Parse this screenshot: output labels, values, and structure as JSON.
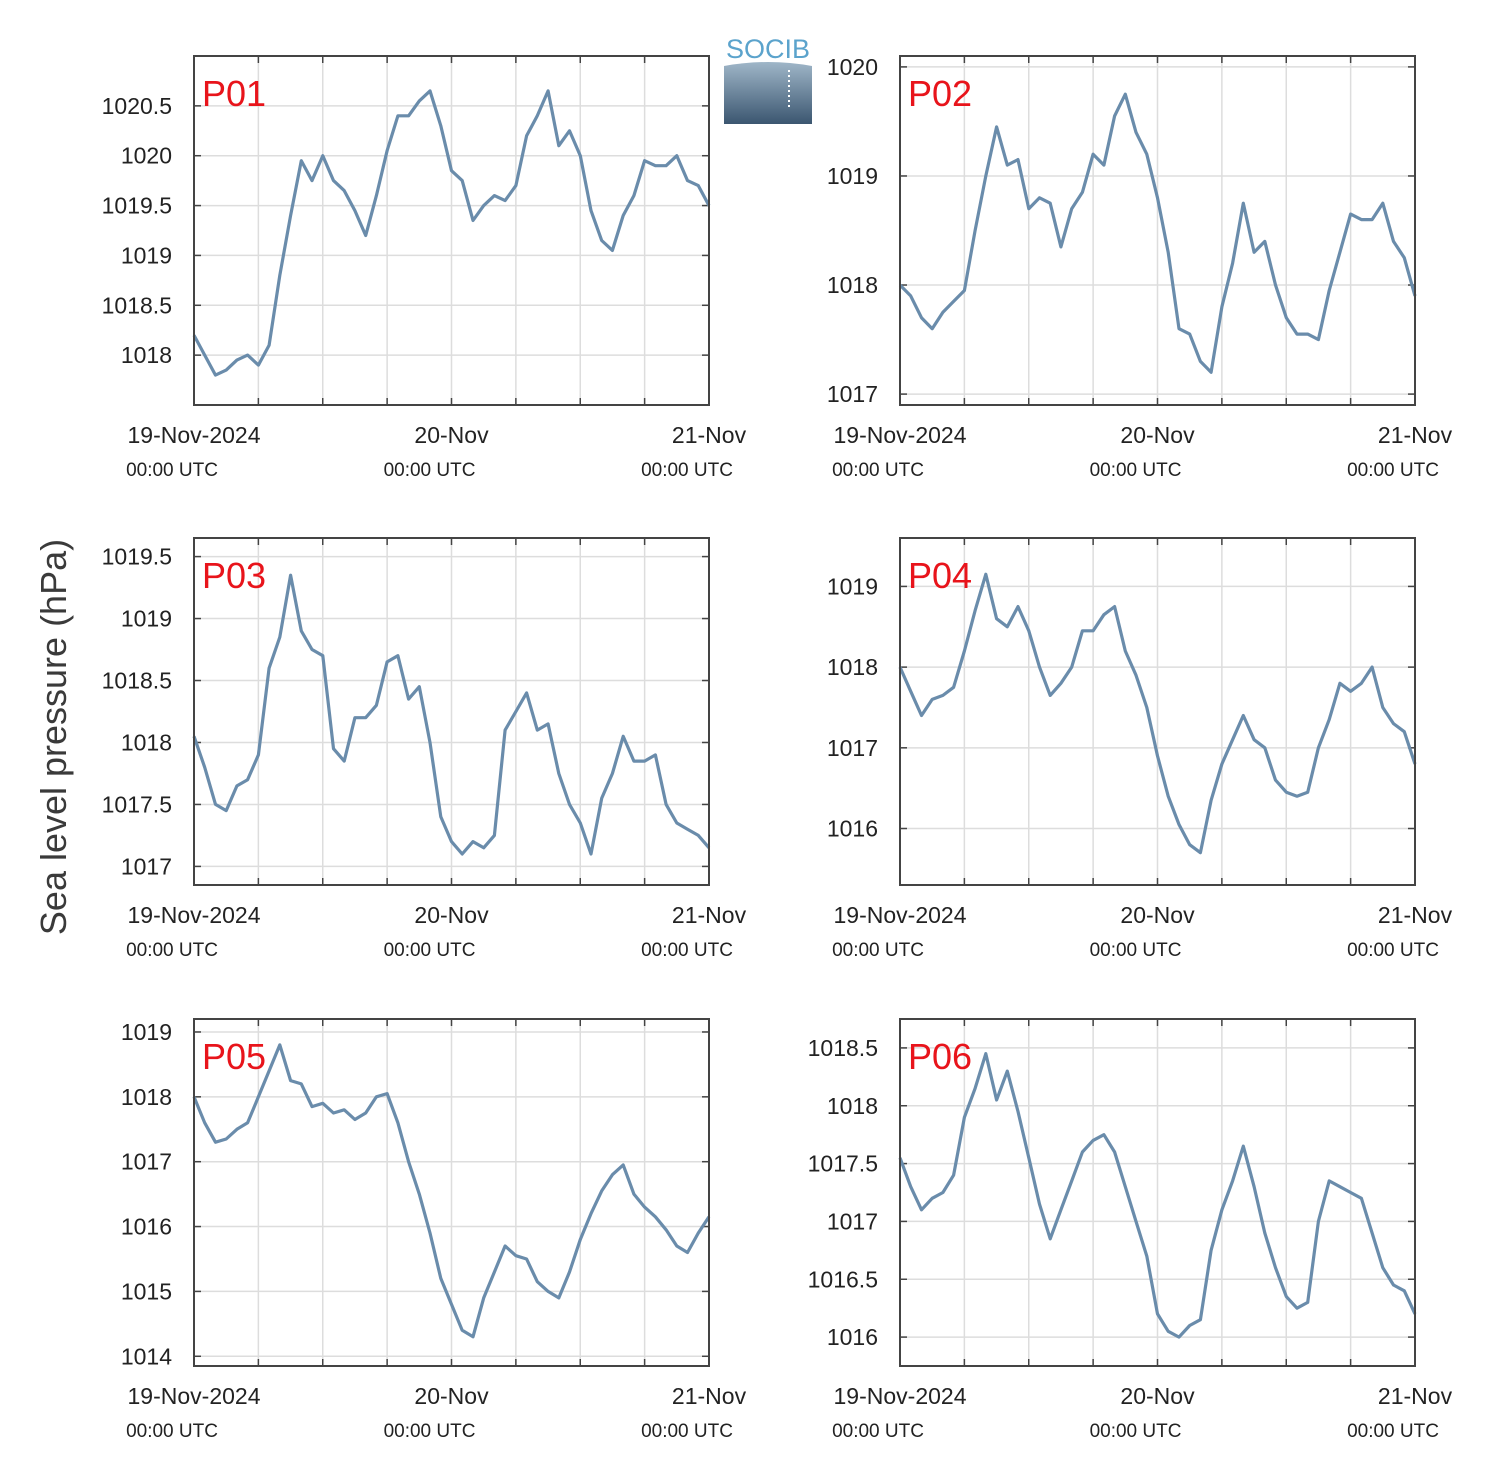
{
  "logo": {
    "text": "SOCIB",
    "text_color": "#5ba3cc",
    "gradient_top": "#9fb6c8",
    "gradient_bottom": "#3b5670"
  },
  "ylabel": "Sea level pressure (hPa)",
  "colors": {
    "line": "#6a8cab",
    "label": "#e8141b",
    "grid": "#dddddd",
    "axis": "#444444"
  },
  "chart_data": [
    {
      "type": "line",
      "title": "P01",
      "ylabel": "Sea level pressure (hPa)",
      "x_range": [
        "2024-11-19T00:00Z",
        "2024-11-21T00:00Z"
      ],
      "ylim": [
        1017.5,
        1021
      ],
      "yticks": [
        1018,
        1018.5,
        1019,
        1019.5,
        1020,
        1020.5
      ],
      "ytick_labels": [
        "1018",
        "1018.5",
        "1019",
        "1019.5",
        "1020",
        "1020.5"
      ],
      "xtick_labels": [
        "19-Nov-2024",
        "20-Nov",
        "21-Nov"
      ],
      "xtick_sublabels": [
        "00:00 UTC",
        "00:00 UTC",
        "00:00 UTC"
      ],
      "grid": true,
      "series": [
        {
          "x_hours": [
            0,
            1,
            2,
            3,
            4,
            5,
            6,
            7,
            8,
            9,
            10,
            11,
            12,
            13,
            14,
            15,
            16,
            17,
            18,
            19,
            20,
            21,
            22,
            23,
            24,
            25,
            26,
            27,
            28,
            29,
            30,
            31,
            32,
            33,
            34,
            35,
            36,
            37,
            38,
            39,
            40,
            41,
            42,
            43,
            44,
            45,
            46,
            47,
            48
          ],
          "values": [
            1018.2,
            1018.0,
            1017.8,
            1017.85,
            1017.95,
            1018.0,
            1017.9,
            1018.1,
            1018.8,
            1019.4,
            1019.95,
            1019.75,
            1020.0,
            1019.75,
            1019.65,
            1019.45,
            1019.2,
            1019.6,
            1020.05,
            1020.4,
            1020.4,
            1020.55,
            1020.65,
            1020.3,
            1019.85,
            1019.75,
            1019.35,
            1019.5,
            1019.6,
            1019.55,
            1019.7,
            1020.2,
            1020.4,
            1020.65,
            1020.1,
            1020.25,
            1020.0,
            1019.45,
            1019.15,
            1019.05,
            1019.4,
            1019.6,
            1019.95,
            1019.9,
            1019.9,
            1020.0,
            1019.75,
            1019.7,
            1019.5
          ]
        }
      ]
    },
    {
      "type": "line",
      "title": "P02",
      "ylabel": "Sea level pressure (hPa)",
      "x_range": [
        "2024-11-19T00:00Z",
        "2024-11-21T00:00Z"
      ],
      "ylim": [
        1016.9,
        1020.1
      ],
      "yticks": [
        1017,
        1018,
        1019,
        1020
      ],
      "ytick_labels": [
        "1017",
        "1018",
        "1019",
        "1020"
      ],
      "xtick_labels": [
        "19-Nov-2024",
        "20-Nov",
        "21-Nov"
      ],
      "xtick_sublabels": [
        "00:00 UTC",
        "00:00 UTC",
        "00:00 UTC"
      ],
      "grid": true,
      "series": [
        {
          "x_hours": [
            0,
            1,
            2,
            3,
            4,
            5,
            6,
            7,
            8,
            9,
            10,
            11,
            12,
            13,
            14,
            15,
            16,
            17,
            18,
            19,
            20,
            21,
            22,
            23,
            24,
            25,
            26,
            27,
            28,
            29,
            30,
            31,
            32,
            33,
            34,
            35,
            36,
            37,
            38,
            39,
            40,
            41,
            42,
            43,
            44,
            45,
            46,
            47,
            48
          ],
          "values": [
            1018.0,
            1017.9,
            1017.7,
            1017.6,
            1017.75,
            1017.85,
            1017.95,
            1018.5,
            1019.0,
            1019.45,
            1019.1,
            1019.15,
            1018.7,
            1018.8,
            1018.75,
            1018.35,
            1018.7,
            1018.85,
            1019.2,
            1019.1,
            1019.55,
            1019.75,
            1019.4,
            1019.2,
            1018.8,
            1018.3,
            1017.6,
            1017.55,
            1017.3,
            1017.2,
            1017.8,
            1018.2,
            1018.75,
            1018.3,
            1018.4,
            1018.0,
            1017.7,
            1017.55,
            1017.55,
            1017.5,
            1017.95,
            1018.3,
            1018.65,
            1018.6,
            1018.6,
            1018.75,
            1018.4,
            1018.25,
            1017.9
          ]
        }
      ]
    },
    {
      "type": "line",
      "title": "P03",
      "ylabel": "Sea level pressure (hPa)",
      "x_range": [
        "2024-11-19T00:00Z",
        "2024-11-21T00:00Z"
      ],
      "ylim": [
        1016.85,
        1019.65
      ],
      "yticks": [
        1017,
        1017.5,
        1018,
        1018.5,
        1019,
        1019.5
      ],
      "ytick_labels": [
        "1017",
        "1017.5",
        "1018",
        "1018.5",
        "1019",
        "1019.5"
      ],
      "xtick_labels": [
        "19-Nov-2024",
        "20-Nov",
        "21-Nov"
      ],
      "xtick_sublabels": [
        "00:00 UTC",
        "00:00 UTC",
        "00:00 UTC"
      ],
      "grid": true,
      "series": [
        {
          "x_hours": [
            0,
            1,
            2,
            3,
            4,
            5,
            6,
            7,
            8,
            9,
            10,
            11,
            12,
            13,
            14,
            15,
            16,
            17,
            18,
            19,
            20,
            21,
            22,
            23,
            24,
            25,
            26,
            27,
            28,
            29,
            30,
            31,
            32,
            33,
            34,
            35,
            36,
            37,
            38,
            39,
            40,
            41,
            42,
            43,
            44,
            45,
            46,
            47,
            48
          ],
          "values": [
            1018.05,
            1017.8,
            1017.5,
            1017.45,
            1017.65,
            1017.7,
            1017.9,
            1018.6,
            1018.85,
            1019.35,
            1018.9,
            1018.75,
            1018.7,
            1017.95,
            1017.85,
            1018.2,
            1018.2,
            1018.3,
            1018.65,
            1018.7,
            1018.35,
            1018.45,
            1018.0,
            1017.4,
            1017.2,
            1017.1,
            1017.2,
            1017.15,
            1017.25,
            1018.1,
            1018.25,
            1018.4,
            1018.1,
            1018.15,
            1017.75,
            1017.5,
            1017.35,
            1017.1,
            1017.55,
            1017.75,
            1018.05,
            1017.85,
            1017.85,
            1017.9,
            1017.5,
            1017.35,
            1017.3,
            1017.25,
            1017.15
          ]
        }
      ]
    },
    {
      "type": "line",
      "title": "P04",
      "ylabel": "Sea level pressure (hPa)",
      "x_range": [
        "2024-11-19T00:00Z",
        "2024-11-21T00:00Z"
      ],
      "ylim": [
        1015.3,
        1019.6
      ],
      "yticks": [
        1016,
        1017,
        1018,
        1019
      ],
      "ytick_labels": [
        "1016",
        "1017",
        "1018",
        "1019"
      ],
      "xtick_labels": [
        "19-Nov-2024",
        "20-Nov",
        "21-Nov"
      ],
      "xtick_sublabels": [
        "00:00 UTC",
        "00:00 UTC",
        "00:00 UTC"
      ],
      "grid": true,
      "series": [
        {
          "x_hours": [
            0,
            1,
            2,
            3,
            4,
            5,
            6,
            7,
            8,
            9,
            10,
            11,
            12,
            13,
            14,
            15,
            16,
            17,
            18,
            19,
            20,
            21,
            22,
            23,
            24,
            25,
            26,
            27,
            28,
            29,
            30,
            31,
            32,
            33,
            34,
            35,
            36,
            37,
            38,
            39,
            40,
            41,
            42,
            43,
            44,
            45,
            46,
            47,
            48
          ],
          "values": [
            1018.0,
            1017.7,
            1017.4,
            1017.6,
            1017.65,
            1017.75,
            1018.2,
            1018.7,
            1019.15,
            1018.6,
            1018.5,
            1018.75,
            1018.45,
            1018.0,
            1017.65,
            1017.8,
            1018.0,
            1018.45,
            1018.45,
            1018.65,
            1018.75,
            1018.2,
            1017.9,
            1017.5,
            1016.9,
            1016.4,
            1016.05,
            1015.8,
            1015.7,
            1016.35,
            1016.8,
            1017.1,
            1017.4,
            1017.1,
            1017.0,
            1016.6,
            1016.45,
            1016.4,
            1016.45,
            1017.0,
            1017.35,
            1017.8,
            1017.7,
            1017.8,
            1018.0,
            1017.5,
            1017.3,
            1017.2,
            1016.8
          ]
        }
      ]
    },
    {
      "type": "line",
      "title": "P05",
      "ylabel": "Sea level pressure (hPa)",
      "x_range": [
        "2024-11-19T00:00Z",
        "2024-11-21T00:00Z"
      ],
      "ylim": [
        1013.85,
        1019.2
      ],
      "yticks": [
        1014,
        1015,
        1016,
        1017,
        1018,
        1019
      ],
      "ytick_labels": [
        "1014",
        "1015",
        "1016",
        "1017",
        "1018",
        "1019"
      ],
      "xtick_labels": [
        "19-Nov-2024",
        "20-Nov",
        "21-Nov"
      ],
      "xtick_sublabels": [
        "00:00 UTC",
        "00:00 UTC",
        "00:00 UTC"
      ],
      "grid": true,
      "series": [
        {
          "x_hours": [
            0,
            1,
            2,
            3,
            4,
            5,
            6,
            7,
            8,
            9,
            10,
            11,
            12,
            13,
            14,
            15,
            16,
            17,
            18,
            19,
            20,
            21,
            22,
            23,
            24,
            25,
            26,
            27,
            28,
            29,
            30,
            31,
            32,
            33,
            34,
            35,
            36,
            37,
            38,
            39,
            40,
            41,
            42,
            43,
            44,
            45,
            46,
            47,
            48
          ],
          "values": [
            1018.0,
            1017.6,
            1017.3,
            1017.35,
            1017.5,
            1017.6,
            1018.0,
            1018.4,
            1018.8,
            1018.25,
            1018.2,
            1017.85,
            1017.9,
            1017.75,
            1017.8,
            1017.65,
            1017.75,
            1018.0,
            1018.05,
            1017.6,
            1017.0,
            1016.5,
            1015.9,
            1015.2,
            1014.8,
            1014.4,
            1014.3,
            1014.9,
            1015.3,
            1015.7,
            1015.55,
            1015.5,
            1015.15,
            1015.0,
            1014.9,
            1015.3,
            1015.8,
            1016.2,
            1016.55,
            1016.8,
            1016.95,
            1016.5,
            1016.3,
            1016.15,
            1015.95,
            1015.7,
            1015.6,
            1015.9,
            1016.15
          ]
        }
      ]
    },
    {
      "type": "line",
      "title": "P06",
      "ylabel": "Sea level pressure (hPa)",
      "x_range": [
        "2024-11-19T00:00Z",
        "2024-11-21T00:00Z"
      ],
      "ylim": [
        1015.75,
        1018.75
      ],
      "yticks": [
        1016,
        1016.5,
        1017,
        1017.5,
        1018,
        1018.5
      ],
      "ytick_labels": [
        "1016",
        "1016.5",
        "1017",
        "1017.5",
        "1018",
        "1018.5"
      ],
      "xtick_labels": [
        "19-Nov-2024",
        "20-Nov",
        "21-Nov"
      ],
      "xtick_sublabels": [
        "00:00 UTC",
        "00:00 UTC",
        "00:00 UTC"
      ],
      "grid": true,
      "series": [
        {
          "x_hours": [
            0,
            1,
            2,
            3,
            4,
            5,
            6,
            7,
            8,
            9,
            10,
            11,
            12,
            13,
            14,
            15,
            16,
            17,
            18,
            19,
            20,
            21,
            22,
            23,
            24,
            25,
            26,
            27,
            28,
            29,
            30,
            31,
            32,
            33,
            34,
            35,
            36,
            37,
            38,
            39,
            40,
            41,
            42,
            43,
            44,
            45,
            46,
            47,
            48
          ],
          "values": [
            1017.55,
            1017.3,
            1017.1,
            1017.2,
            1017.25,
            1017.4,
            1017.9,
            1018.15,
            1018.45,
            1018.05,
            1018.3,
            1017.95,
            1017.55,
            1017.15,
            1016.85,
            1017.1,
            1017.35,
            1017.6,
            1017.7,
            1017.75,
            1017.6,
            1017.3,
            1017.0,
            1016.7,
            1016.2,
            1016.05,
            1016.0,
            1016.1,
            1016.15,
            1016.75,
            1017.1,
            1017.35,
            1017.65,
            1017.3,
            1016.9,
            1016.6,
            1016.35,
            1016.25,
            1016.3,
            1017.0,
            1017.35,
            1017.3,
            1017.25,
            1017.2,
            1016.9,
            1016.6,
            1016.45,
            1016.4,
            1016.2
          ]
        }
      ]
    }
  ]
}
